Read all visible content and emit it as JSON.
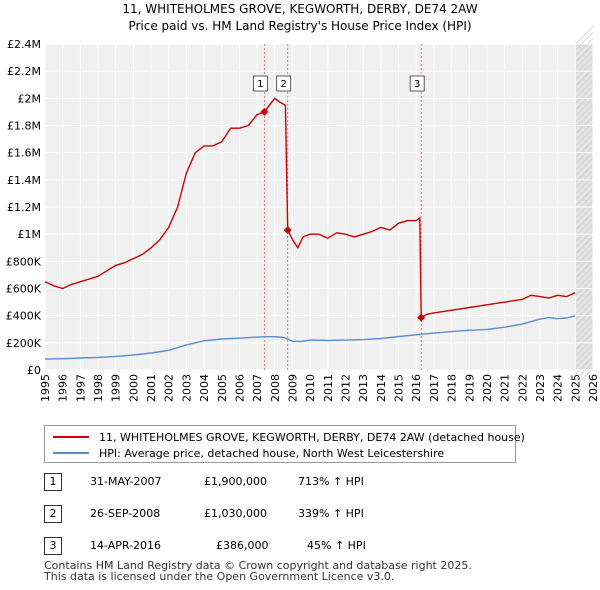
{
  "chart_data": {
    "type": "line",
    "title": "11, WHITEHOLMES GROVE, KEGWORTH, DERBY, DE74 2AW",
    "subtitle": "Price paid vs. HM Land Registry's House Price Index (HPI)",
    "xlabel": "",
    "ylabel": "",
    "xlim": [
      1995,
      2026
    ],
    "ylim": [
      0,
      2400000
    ],
    "y_ticks": [
      0,
      200000,
      400000,
      600000,
      800000,
      1000000,
      1200000,
      1400000,
      1600000,
      1800000,
      2000000,
      2200000,
      2400000
    ],
    "y_tick_labels": [
      "£0",
      "£200K",
      "£400K",
      "£600K",
      "£800K",
      "£1M",
      "£1.2M",
      "£1.4M",
      "£1.6M",
      "£1.8M",
      "£2M",
      "£2.2M",
      "£2.4M"
    ],
    "x_ticks": [
      1995,
      1996,
      1997,
      1998,
      1999,
      2000,
      2001,
      2002,
      2003,
      2004,
      2005,
      2006,
      2007,
      2008,
      2009,
      2010,
      2011,
      2012,
      2013,
      2014,
      2015,
      2016,
      2017,
      2018,
      2019,
      2020,
      2021,
      2022,
      2023,
      2024,
      2025,
      2026
    ],
    "x_tick_labels": [
      "1995",
      "1996",
      "1997",
      "1998",
      "1999",
      "2000",
      "2001",
      "2002",
      "2003",
      "2004",
      "2005",
      "2006",
      "2007",
      "2008",
      "2009",
      "2010",
      "2011",
      "2012",
      "2013",
      "2014",
      "2015",
      "2016",
      "2017",
      "2018",
      "2019",
      "2020",
      "2021",
      "2022",
      "2023",
      "2024",
      "2025",
      "2026"
    ],
    "grid": true,
    "future_shading_from": 2025.0,
    "series": [
      {
        "name": "11, WHITEHOLMES GROVE, KEGWORTH, DERBY, DE74 2AW (detached house)",
        "color": "#cc0000",
        "x": [
          1995.0,
          1995.5,
          1996.0,
          1996.5,
          1997.0,
          1997.5,
          1998.0,
          1998.5,
          1999.0,
          1999.5,
          2000.0,
          2000.5,
          2001.0,
          2001.5,
          2002.0,
          2002.5,
          2003.0,
          2003.5,
          2004.0,
          2004.5,
          2005.0,
          2005.5,
          2006.0,
          2006.5,
          2007.0,
          2007.41,
          2007.7,
          2008.0,
          2008.3,
          2008.6,
          2008.73,
          2009.0,
          2009.3,
          2009.6,
          2010.0,
          2010.5,
          2011.0,
          2011.5,
          2012.0,
          2012.5,
          2013.0,
          2013.5,
          2014.0,
          2014.5,
          2015.0,
          2015.5,
          2016.0,
          2016.2,
          2016.28,
          2016.6,
          2017.0,
          2017.5,
          2018.0,
          2018.5,
          2019.0,
          2019.5,
          2020.0,
          2020.5,
          2021.0,
          2021.5,
          2022.0,
          2022.5,
          2023.0,
          2023.5,
          2024.0,
          2024.5,
          2025.0
        ],
        "values": [
          650000,
          620000,
          600000,
          630000,
          650000,
          670000,
          690000,
          730000,
          770000,
          790000,
          820000,
          850000,
          900000,
          960000,
          1050000,
          1200000,
          1450000,
          1600000,
          1650000,
          1650000,
          1680000,
          1780000,
          1780000,
          1800000,
          1880000,
          1900000,
          1950000,
          2000000,
          1970000,
          1950000,
          1030000,
          960000,
          900000,
          980000,
          1000000,
          1000000,
          970000,
          1010000,
          1000000,
          980000,
          1000000,
          1020000,
          1050000,
          1030000,
          1080000,
          1100000,
          1100000,
          1120000,
          386000,
          410000,
          420000,
          430000,
          440000,
          450000,
          460000,
          470000,
          480000,
          490000,
          500000,
          510000,
          520000,
          550000,
          540000,
          530000,
          550000,
          540000,
          570000
        ]
      },
      {
        "name": "HPI: Average price, detached house, North West Leicestershire",
        "color": "#5b8dd0",
        "x": [
          1995.0,
          1996.0,
          1997.0,
          1998.0,
          1999.0,
          2000.0,
          2001.0,
          2002.0,
          2003.0,
          2004.0,
          2005.0,
          2006.0,
          2007.0,
          2007.5,
          2008.0,
          2008.5,
          2009.0,
          2009.5,
          2010.0,
          2011.0,
          2012.0,
          2013.0,
          2014.0,
          2015.0,
          2016.0,
          2017.0,
          2018.0,
          2019.0,
          2020.0,
          2021.0,
          2022.0,
          2023.0,
          2023.5,
          2024.0,
          2024.5,
          2025.0
        ],
        "values": [
          80000,
          83000,
          88000,
          93000,
          100000,
          110000,
          125000,
          145000,
          185000,
          215000,
          228000,
          234000,
          242000,
          245000,
          245000,
          240000,
          212000,
          210000,
          220000,
          218000,
          220000,
          224000,
          232000,
          246000,
          259000,
          272000,
          283000,
          292000,
          299000,
          315000,
          338000,
          375000,
          385000,
          378000,
          383000,
          398000
        ]
      }
    ],
    "sales": [
      {
        "label": "1",
        "x": 2007.41,
        "value": 1900000
      },
      {
        "label": "2",
        "x": 2008.73,
        "value": 1030000
      },
      {
        "label": "3",
        "x": 2016.28,
        "value": 386000
      }
    ]
  },
  "legend": {
    "items": [
      {
        "label": "11, WHITEHOLMES GROVE, KEGWORTH, DERBY, DE74 2AW (detached house)",
        "color": "#cc0000"
      },
      {
        "label": "HPI: Average price, detached house, North West Leicestershire",
        "color": "#5b8dd0"
      }
    ]
  },
  "sales_table": [
    {
      "num": "1",
      "date": "31-MAY-2007",
      "price": "£1,900,000",
      "hpi": "713% ↑ HPI"
    },
    {
      "num": "2",
      "date": "26-SEP-2008",
      "price": "£1,030,000",
      "hpi": "339% ↑ HPI"
    },
    {
      "num": "3",
      "date": "14-APR-2016",
      "price": "£386,000",
      "hpi": "45% ↑ HPI"
    }
  ],
  "footer": {
    "line1": "Contains HM Land Registry data © Crown copyright and database right 2025.",
    "line2": "This data is licensed under the Open Government Licence v3.0."
  }
}
